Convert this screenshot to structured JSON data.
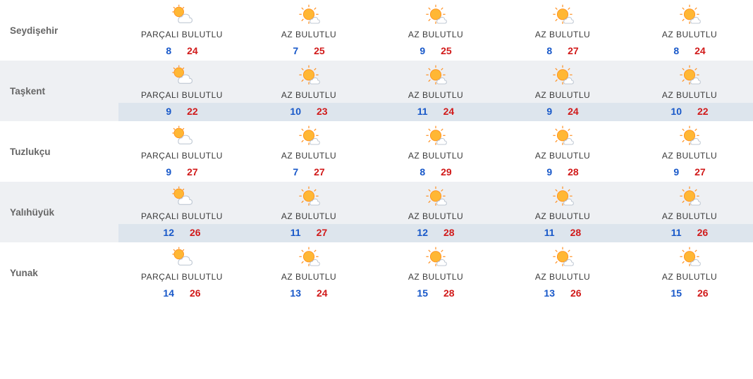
{
  "colors": {
    "lo": "#1858c9",
    "hi": "#d11a1a",
    "text": "#3a3a3a",
    "city": "#666666",
    "alt_bg": "#eef0f3",
    "alt_band": "#dde5ed",
    "sun": "#ffb734",
    "sun_outline": "#ff8f1f",
    "cloud_fill": "#ffffff",
    "cloud_outline": "#b9c3cf"
  },
  "icons": {
    "partly_cloudy": "partly-cloudy",
    "mostly_sunny": "mostly-sunny"
  },
  "rows": [
    {
      "city": "Seydişehir",
      "alt": false,
      "days": [
        {
          "icon": "partly_cloudy",
          "condition": "PARÇALI BULUTLU",
          "lo": "8",
          "hi": "24"
        },
        {
          "icon": "mostly_sunny",
          "condition": "AZ BULUTLU",
          "lo": "7",
          "hi": "25"
        },
        {
          "icon": "mostly_sunny",
          "condition": "AZ BULUTLU",
          "lo": "9",
          "hi": "25"
        },
        {
          "icon": "mostly_sunny",
          "condition": "AZ BULUTLU",
          "lo": "8",
          "hi": "27"
        },
        {
          "icon": "mostly_sunny",
          "condition": "AZ BULUTLU",
          "lo": "8",
          "hi": "24"
        }
      ]
    },
    {
      "city": "Taşkent",
      "alt": true,
      "days": [
        {
          "icon": "partly_cloudy",
          "condition": "PARÇALI BULUTLU",
          "lo": "9",
          "hi": "22"
        },
        {
          "icon": "mostly_sunny",
          "condition": "AZ BULUTLU",
          "lo": "10",
          "hi": "23"
        },
        {
          "icon": "mostly_sunny",
          "condition": "AZ BULUTLU",
          "lo": "11",
          "hi": "24"
        },
        {
          "icon": "mostly_sunny",
          "condition": "AZ BULUTLU",
          "lo": "9",
          "hi": "24"
        },
        {
          "icon": "mostly_sunny",
          "condition": "AZ BULUTLU",
          "lo": "10",
          "hi": "22"
        }
      ]
    },
    {
      "city": "Tuzlukçu",
      "alt": false,
      "days": [
        {
          "icon": "partly_cloudy",
          "condition": "PARÇALI BULUTLU",
          "lo": "9",
          "hi": "27"
        },
        {
          "icon": "mostly_sunny",
          "condition": "AZ BULUTLU",
          "lo": "7",
          "hi": "27"
        },
        {
          "icon": "mostly_sunny",
          "condition": "AZ BULUTLU",
          "lo": "8",
          "hi": "29"
        },
        {
          "icon": "mostly_sunny",
          "condition": "AZ BULUTLU",
          "lo": "9",
          "hi": "28"
        },
        {
          "icon": "mostly_sunny",
          "condition": "AZ BULUTLU",
          "lo": "9",
          "hi": "27"
        }
      ]
    },
    {
      "city": "Yalıhüyük",
      "alt": true,
      "days": [
        {
          "icon": "partly_cloudy",
          "condition": "PARÇALI BULUTLU",
          "lo": "12",
          "hi": "26"
        },
        {
          "icon": "mostly_sunny",
          "condition": "AZ BULUTLU",
          "lo": "11",
          "hi": "27"
        },
        {
          "icon": "mostly_sunny",
          "condition": "AZ BULUTLU",
          "lo": "12",
          "hi": "28"
        },
        {
          "icon": "mostly_sunny",
          "condition": "AZ BULUTLU",
          "lo": "11",
          "hi": "28"
        },
        {
          "icon": "mostly_sunny",
          "condition": "AZ BULUTLU",
          "lo": "11",
          "hi": "26"
        }
      ]
    },
    {
      "city": "Yunak",
      "alt": false,
      "days": [
        {
          "icon": "partly_cloudy",
          "condition": "PARÇALI BULUTLU",
          "lo": "14",
          "hi": "26"
        },
        {
          "icon": "mostly_sunny",
          "condition": "AZ BULUTLU",
          "lo": "13",
          "hi": "24"
        },
        {
          "icon": "mostly_sunny",
          "condition": "AZ BULUTLU",
          "lo": "15",
          "hi": "28"
        },
        {
          "icon": "mostly_sunny",
          "condition": "AZ BULUTLU",
          "lo": "13",
          "hi": "26"
        },
        {
          "icon": "mostly_sunny",
          "condition": "AZ BULUTLU",
          "lo": "15",
          "hi": "26"
        }
      ]
    }
  ]
}
